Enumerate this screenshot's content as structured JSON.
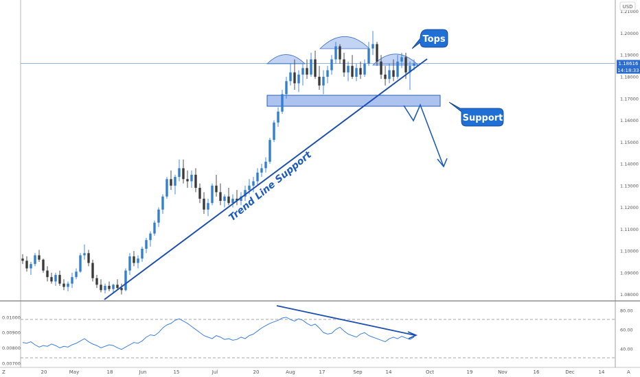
{
  "chart_data": [
    {
      "type": "candlestick",
      "currency_label": "USD",
      "price_label": "1.18616",
      "countdown_label": "14:18:33",
      "price_current": 1.18616,
      "ylim": [
        1.078,
        1.214
      ],
      "y_ticks": [
        "1.21000",
        "1.20000",
        "1.19000",
        "1.18000",
        "1.17000",
        "1.16000",
        "1.15000",
        "1.14000",
        "1.13000",
        "1.12000",
        "1.11000",
        "1.10000",
        "1.09000",
        "1.08000"
      ],
      "x_ticks": [
        "20",
        "May",
        "18",
        "Jun",
        "15",
        "Jul",
        "20",
        "Aug",
        "17",
        "Sep",
        "14",
        "Oct",
        "19",
        "Nov",
        "16",
        "Dec",
        "14"
      ],
      "candles": [
        [
          1.0965,
          1.0985,
          1.094,
          1.0955
        ],
        [
          1.0955,
          1.0975,
          1.0905,
          1.092
        ],
        [
          1.092,
          1.095,
          1.089,
          1.094
        ],
        [
          1.094,
          1.099,
          1.093,
          1.098
        ],
        [
          1.098,
          1.1005,
          1.095,
          1.096
        ],
        [
          1.096,
          1.0965,
          1.09,
          1.091
        ],
        [
          1.091,
          1.093,
          1.086,
          1.088
        ],
        [
          1.088,
          1.09,
          1.085,
          1.086
        ],
        [
          1.086,
          1.09,
          1.084,
          1.089
        ],
        [
          1.089,
          1.091,
          1.084,
          1.085
        ],
        [
          1.085,
          1.087,
          1.082,
          1.0835
        ],
        [
          1.0835,
          1.086,
          1.0815,
          1.085
        ],
        [
          1.085,
          1.09,
          1.083,
          1.088
        ],
        [
          1.088,
          1.092,
          1.087,
          1.0905
        ],
        [
          1.0905,
          1.099,
          1.09,
          1.098
        ],
        [
          1.098,
          1.103,
          1.096,
          1.099
        ],
        [
          1.099,
          1.1005,
          1.093,
          1.0945
        ],
        [
          1.0945,
          1.096,
          1.086,
          1.0875
        ],
        [
          1.0875,
          1.089,
          1.083,
          1.0845
        ],
        [
          1.0845,
          1.087,
          1.081,
          1.082
        ],
        [
          1.082,
          1.085,
          1.0805,
          1.084
        ],
        [
          1.084,
          1.086,
          1.0815,
          1.0825
        ],
        [
          1.0825,
          1.085,
          1.081,
          1.0845
        ],
        [
          1.0845,
          1.087,
          1.082,
          1.083
        ],
        [
          1.083,
          1.085,
          1.08,
          1.082
        ],
        [
          1.082,
          1.092,
          1.0815,
          1.091
        ],
        [
          1.091,
          1.099,
          1.089,
          1.0975
        ],
        [
          1.0975,
          1.1,
          1.093,
          1.0945
        ],
        [
          1.0945,
          1.098,
          1.092,
          1.0965
        ],
        [
          1.0965,
          1.102,
          1.095,
          1.101
        ],
        [
          1.101,
          1.106,
          1.099,
          1.105
        ],
        [
          1.105,
          1.109,
          1.102,
          1.108
        ],
        [
          1.108,
          1.114,
          1.107,
          1.113
        ],
        [
          1.113,
          1.12,
          1.111,
          1.119
        ],
        [
          1.119,
          1.126,
          1.117,
          1.125
        ],
        [
          1.125,
          1.134,
          1.124,
          1.133
        ],
        [
          1.133,
          1.137,
          1.128,
          1.13
        ],
        [
          1.13,
          1.135,
          1.126,
          1.134
        ],
        [
          1.134,
          1.142,
          1.132,
          1.138
        ],
        [
          1.138,
          1.142,
          1.131,
          1.133
        ],
        [
          1.133,
          1.137,
          1.129,
          1.132
        ],
        [
          1.132,
          1.137,
          1.129,
          1.135
        ],
        [
          1.135,
          1.138,
          1.127,
          1.129
        ],
        [
          1.129,
          1.131,
          1.122,
          1.124
        ],
        [
          1.124,
          1.127,
          1.117,
          1.119
        ],
        [
          1.119,
          1.124,
          1.116,
          1.122
        ],
        [
          1.122,
          1.131,
          1.121,
          1.13
        ],
        [
          1.13,
          1.135,
          1.125,
          1.127
        ],
        [
          1.127,
          1.131,
          1.121,
          1.123
        ],
        [
          1.123,
          1.126,
          1.12,
          1.125
        ],
        [
          1.125,
          1.129,
          1.121,
          1.122
        ],
        [
          1.122,
          1.126,
          1.12,
          1.124
        ],
        [
          1.124,
          1.128,
          1.121,
          1.123
        ],
        [
          1.123,
          1.127,
          1.121,
          1.125
        ],
        [
          1.125,
          1.13,
          1.123,
          1.128
        ],
        [
          1.128,
          1.133,
          1.126,
          1.13
        ],
        [
          1.13,
          1.134,
          1.127,
          1.132
        ],
        [
          1.132,
          1.138,
          1.13,
          1.136
        ],
        [
          1.136,
          1.14,
          1.134,
          1.138
        ],
        [
          1.138,
          1.143,
          1.136,
          1.141
        ],
        [
          1.141,
          1.152,
          1.14,
          1.151
        ],
        [
          1.151,
          1.16,
          1.15,
          1.159
        ],
        [
          1.159,
          1.166,
          1.157,
          1.164
        ],
        [
          1.164,
          1.174,
          1.163,
          1.172
        ],
        [
          1.172,
          1.18,
          1.17,
          1.178
        ],
        [
          1.178,
          1.186,
          1.176,
          1.182
        ],
        [
          1.182,
          1.188,
          1.174,
          1.177
        ],
        [
          1.177,
          1.183,
          1.173,
          1.181
        ],
        [
          1.181,
          1.186,
          1.176,
          1.184
        ],
        [
          1.184,
          1.188,
          1.179,
          1.181
        ],
        [
          1.181,
          1.191,
          1.18,
          1.188
        ],
        [
          1.188,
          1.192,
          1.179,
          1.18
        ],
        [
          1.18,
          1.185,
          1.174,
          1.176
        ],
        [
          1.176,
          1.183,
          1.172,
          1.18
        ],
        [
          1.18,
          1.185,
          1.177,
          1.183
        ],
        [
          1.183,
          1.19,
          1.181,
          1.188
        ],
        [
          1.188,
          1.196,
          1.186,
          1.194
        ],
        [
          1.194,
          1.195,
          1.186,
          1.188
        ],
        [
          1.188,
          1.191,
          1.18,
          1.182
        ],
        [
          1.182,
          1.187,
          1.178,
          1.185
        ],
        [
          1.185,
          1.19,
          1.179,
          1.18
        ],
        [
          1.18,
          1.186,
          1.178,
          1.184
        ],
        [
          1.184,
          1.187,
          1.179,
          1.181
        ],
        [
          1.181,
          1.188,
          1.18,
          1.186
        ],
        [
          1.186,
          1.196,
          1.185,
          1.193
        ],
        [
          1.193,
          1.201,
          1.19,
          1.195
        ],
        [
          1.195,
          1.196,
          1.185,
          1.187
        ],
        [
          1.187,
          1.19,
          1.179,
          1.181
        ],
        [
          1.181,
          1.185,
          1.176,
          1.179
        ],
        [
          1.179,
          1.186,
          1.177,
          1.183
        ],
        [
          1.183,
          1.188,
          1.178,
          1.18
        ],
        [
          1.18,
          1.19,
          1.179,
          1.187
        ],
        [
          1.187,
          1.191,
          1.184,
          1.189
        ],
        [
          1.189,
          1.191,
          1.179,
          1.182
        ],
        [
          1.182,
          1.187,
          1.174,
          1.185
        ],
        [
          1.185,
          1.188,
          1.183,
          1.186
        ]
      ],
      "rsi_ylim": [
        0.0069,
        0.0108
      ],
      "rsi_left_ticks": [
        "0.01000",
        "0.00900",
        "0.00800",
        "0.00700"
      ],
      "rsi_right_ticks": [
        "80.00",
        "60.00",
        "40.00"
      ],
      "rsi_values": [
        0.00835,
        0.0083,
        0.0084,
        0.0082,
        0.00805,
        0.00815,
        0.0081,
        0.00825,
        0.00815,
        0.008,
        0.0081,
        0.00805,
        0.0082,
        0.0083,
        0.00845,
        0.0086,
        0.0084,
        0.00825,
        0.00815,
        0.008,
        0.0081,
        0.0082,
        0.00815,
        0.008,
        0.0079,
        0.00805,
        0.0082,
        0.00835,
        0.0083,
        0.00845,
        0.0087,
        0.00885,
        0.0088,
        0.009,
        0.0093,
        0.0095,
        0.0096,
        0.0098,
        0.0099,
        0.00975,
        0.0096,
        0.0094,
        0.0092,
        0.009,
        0.0088,
        0.0087,
        0.0086,
        0.0088,
        0.0087,
        0.00855,
        0.0086,
        0.0085,
        0.00855,
        0.0087,
        0.0086,
        0.0088,
        0.0089,
        0.0091,
        0.0093,
        0.00945,
        0.0096,
        0.0097,
        0.0098,
        0.00995,
        0.01,
        0.00985,
        0.00975,
        0.0099,
        0.0098,
        0.0096,
        0.00945,
        0.00955,
        0.0093,
        0.009,
        0.0089,
        0.00895,
        0.0092,
        0.00935,
        0.0091,
        0.0089,
        0.0088,
        0.0087,
        0.0089,
        0.009,
        0.0088,
        0.0087,
        0.0086,
        0.0085,
        0.0084,
        0.0086,
        0.0087,
        0.0086,
        0.00875,
        0.00865,
        0.00855,
        0.0087
      ],
      "annotations": {
        "tops_label": "Tops",
        "support_label": "Support",
        "trendline_label": "Trend Line Support"
      },
      "bottom_corner_left": "Z",
      "bottom_corner_right": "A"
    }
  ]
}
